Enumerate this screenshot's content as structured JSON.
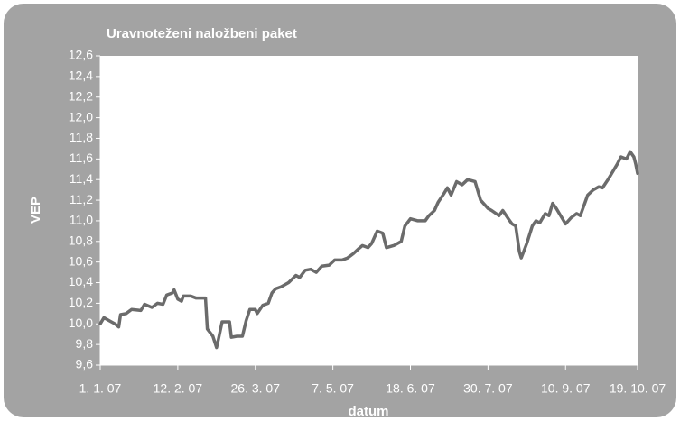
{
  "chart_data": {
    "type": "line",
    "title": "Uravnoteženi naložbeni paket",
    "y_label": "VEP",
    "x_label": "datum",
    "x": [
      "2007-01-01",
      "2007-01-03",
      "2007-01-06",
      "2007-01-09",
      "2007-01-11",
      "2007-01-12",
      "2007-01-15",
      "2007-01-18",
      "2007-01-23",
      "2007-01-25",
      "2007-01-29",
      "2007-02-01",
      "2007-02-04",
      "2007-02-06",
      "2007-02-09",
      "2007-02-10",
      "2007-02-12",
      "2007-02-14",
      "2007-02-15",
      "2007-02-19",
      "2007-02-22",
      "2007-02-27",
      "2007-02-28",
      "2007-03-03",
      "2007-03-05",
      "2007-03-06",
      "2007-03-08",
      "2007-03-12",
      "2007-03-13",
      "2007-03-16",
      "2007-03-19",
      "2007-03-21",
      "2007-03-23",
      "2007-03-26",
      "2007-03-27",
      "2007-03-30",
      "2007-04-02",
      "2007-04-04",
      "2007-04-06",
      "2007-04-09",
      "2007-04-13",
      "2007-04-17",
      "2007-04-19",
      "2007-04-22",
      "2007-04-25",
      "2007-04-28",
      "2007-05-01",
      "2007-05-05",
      "2007-05-08",
      "2007-05-12",
      "2007-05-15",
      "2007-05-18",
      "2007-05-21",
      "2007-05-23",
      "2007-05-26",
      "2007-05-28",
      "2007-05-31",
      "2007-06-03",
      "2007-06-05",
      "2007-06-09",
      "2007-06-13",
      "2007-06-15",
      "2007-06-18",
      "2007-06-22",
      "2007-06-26",
      "2007-06-28",
      "2007-07-01",
      "2007-07-03",
      "2007-07-06",
      "2007-07-08",
      "2007-07-10",
      "2007-07-13",
      "2007-07-16",
      "2007-07-19",
      "2007-07-23",
      "2007-07-26",
      "2007-07-30",
      "2007-08-01",
      "2007-08-05",
      "2007-08-07",
      "2007-08-10",
      "2007-08-12",
      "2007-08-14",
      "2007-08-16",
      "2007-08-17",
      "2007-08-20",
      "2007-08-23",
      "2007-08-25",
      "2007-08-27",
      "2007-08-30",
      "2007-09-01",
      "2007-09-03",
      "2007-09-05",
      "2007-09-10",
      "2007-09-13",
      "2007-09-16",
      "2007-09-18",
      "2007-09-22",
      "2007-09-25",
      "2007-09-28",
      "2007-09-30",
      "2007-10-03",
      "2007-10-05",
      "2007-10-08",
      "2007-10-10",
      "2007-10-13",
      "2007-10-15",
      "2007-10-17",
      "2007-10-18",
      "2007-10-19"
    ],
    "series": [
      {
        "name": "VEP",
        "color": "#6b6b6b",
        "values": [
          10.0,
          10.06,
          10.03,
          10.0,
          9.97,
          10.09,
          10.1,
          10.14,
          10.13,
          10.19,
          10.16,
          10.2,
          10.19,
          10.28,
          10.3,
          10.33,
          10.24,
          10.22,
          10.27,
          10.27,
          10.25,
          10.25,
          9.95,
          9.88,
          9.77,
          9.85,
          10.02,
          10.02,
          9.87,
          9.88,
          9.88,
          10.03,
          10.14,
          10.14,
          10.1,
          10.18,
          10.2,
          10.3,
          10.34,
          10.36,
          10.4,
          10.47,
          10.45,
          10.52,
          10.53,
          10.5,
          10.56,
          10.57,
          10.62,
          10.62,
          10.64,
          10.68,
          10.73,
          10.76,
          10.74,
          10.78,
          10.9,
          10.88,
          10.74,
          10.76,
          10.8,
          10.95,
          11.02,
          11.0,
          11.0,
          11.05,
          11.1,
          11.18,
          11.26,
          11.32,
          11.25,
          11.38,
          11.35,
          11.4,
          11.38,
          11.2,
          11.12,
          11.1,
          11.05,
          11.1,
          11.02,
          10.97,
          10.95,
          10.7,
          10.64,
          10.78,
          10.95,
          11.0,
          10.98,
          11.07,
          11.05,
          11.17,
          11.12,
          10.97,
          11.03,
          11.07,
          11.05,
          11.25,
          11.3,
          11.33,
          11.32,
          11.4,
          11.46,
          11.55,
          11.62,
          11.6,
          11.67,
          11.62,
          11.55,
          11.46
        ]
      }
    ],
    "xlim": [
      "2007-01-01",
      "2007-10-19"
    ],
    "xticks": [
      {
        "value": "2007-01-01",
        "label": "1. 1. 07"
      },
      {
        "value": "2007-02-12",
        "label": "12. 2. 07"
      },
      {
        "value": "2007-03-26",
        "label": "26. 3. 07"
      },
      {
        "value": "2007-05-07",
        "label": "7. 5. 07"
      },
      {
        "value": "2007-06-18",
        "label": "18. 6. 07"
      },
      {
        "value": "2007-07-30",
        "label": "30. 7. 07"
      },
      {
        "value": "2007-09-10",
        "label": "10. 9. 07"
      },
      {
        "value": "2007-10-19",
        "label": "19. 10. 07"
      }
    ],
    "ylim": [
      9.6,
      12.6
    ],
    "yticks": [
      {
        "value": 9.6,
        "label": "9,6"
      },
      {
        "value": 9.8,
        "label": "9,8"
      },
      {
        "value": 10.0,
        "label": "10,0"
      },
      {
        "value": 10.2,
        "label": "10,2"
      },
      {
        "value": 10.4,
        "label": "10,4"
      },
      {
        "value": 10.6,
        "label": "10,6"
      },
      {
        "value": 10.8,
        "label": "10,8"
      },
      {
        "value": 11.0,
        "label": "11,0"
      },
      {
        "value": 11.2,
        "label": "11,2"
      },
      {
        "value": 11.4,
        "label": "11,4"
      },
      {
        "value": 11.6,
        "label": "11,6"
      },
      {
        "value": 11.8,
        "label": "11,8"
      },
      {
        "value": 12.0,
        "label": "12,0"
      },
      {
        "value": 12.2,
        "label": "12,2"
      },
      {
        "value": 12.4,
        "label": "12,4"
      },
      {
        "value": 12.6,
        "label": "12,6"
      }
    ],
    "grid": false
  }
}
